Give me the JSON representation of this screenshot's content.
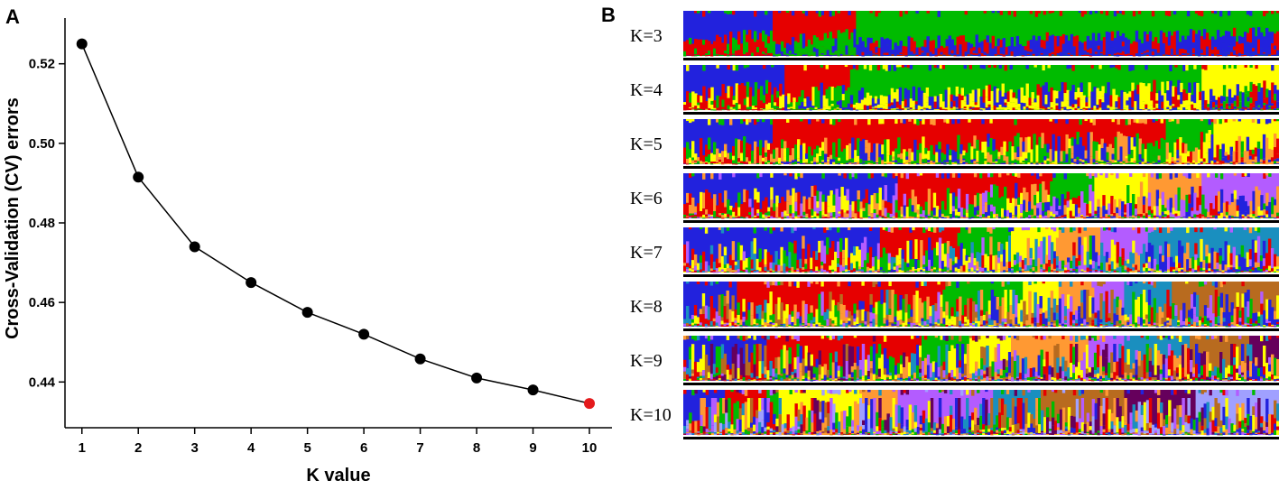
{
  "panels": {
    "a_label": "A",
    "b_label": "B"
  },
  "chart_data": [
    {
      "type": "line",
      "panel": "A",
      "title": "",
      "xlabel": "K value",
      "ylabel": "Cross-Validation (CV) errors",
      "x": [
        1,
        2,
        3,
        4,
        5,
        6,
        7,
        8,
        9,
        10
      ],
      "values": [
        0.525,
        0.4915,
        0.474,
        0.465,
        0.4575,
        0.452,
        0.4458,
        0.441,
        0.438,
        0.4346
      ],
      "xticks": [
        "1",
        "2",
        "3",
        "4",
        "5",
        "6",
        "7",
        "8",
        "9",
        "10"
      ],
      "yticks": [
        "0.44",
        "0.46",
        "0.48",
        "0.50",
        "0.52"
      ],
      "ytick_values": [
        0.44,
        0.46,
        0.48,
        0.5,
        0.52
      ],
      "xlim": [
        0.7,
        10.4
      ],
      "ylim": [
        0.4285,
        0.5315
      ],
      "grid": false,
      "point_color": "#000000",
      "highlight_index": 9,
      "highlight_color": "#e41a1c",
      "line_color": "#000000"
    },
    {
      "type": "bar",
      "subtype": "stacked-admixture",
      "panel": "B",
      "palette": [
        "#2222dd",
        "#e60000",
        "#00bb00",
        "#ffff00",
        "#ff9933",
        "#b35cff",
        "#1a8fbf",
        "#b86b1f",
        "#66005c",
        "#a0a0ff"
      ],
      "rows": [
        {
          "label": "K=3",
          "k": 3,
          "segments": [
            {
              "cluster": 0,
              "share": 0.15
            },
            {
              "cluster": 1,
              "share": 0.14
            },
            {
              "cluster": 2,
              "share": 0.71
            }
          ]
        },
        {
          "label": "K=4",
          "k": 4,
          "segments": [
            {
              "cluster": 0,
              "share": 0.17
            },
            {
              "cluster": 1,
              "share": 0.11
            },
            {
              "cluster": 2,
              "share": 0.59
            },
            {
              "cluster": 3,
              "share": 0.13
            }
          ]
        },
        {
          "label": "K=5",
          "k": 5,
          "segments": [
            {
              "cluster": 0,
              "share": 0.15
            },
            {
              "cluster": 1,
              "share": 0.66
            },
            {
              "cluster": 2,
              "share": 0.08
            },
            {
              "cluster": 3,
              "share": 0.11
            },
            {
              "cluster": 4,
              "share": 0.04
            }
          ]
        },
        {
          "label": "K=6",
          "k": 6,
          "segments": [
            {
              "cluster": 0,
              "share": 0.36
            },
            {
              "cluster": 1,
              "share": 0.26
            },
            {
              "cluster": 2,
              "share": 0.07
            },
            {
              "cluster": 3,
              "share": 0.09
            },
            {
              "cluster": 4,
              "share": 0.09
            },
            {
              "cluster": 5,
              "share": 0.13
            }
          ]
        },
        {
          "label": "K=7",
          "k": 7,
          "segments": [
            {
              "cluster": 0,
              "share": 0.33
            },
            {
              "cluster": 1,
              "share": 0.13
            },
            {
              "cluster": 2,
              "share": 0.09
            },
            {
              "cluster": 3,
              "share": 0.08
            },
            {
              "cluster": 4,
              "share": 0.07
            },
            {
              "cluster": 5,
              "share": 0.08
            },
            {
              "cluster": 6,
              "share": 0.22
            }
          ]
        },
        {
          "label": "K=8",
          "k": 8,
          "segments": [
            {
              "cluster": 0,
              "share": 0.09
            },
            {
              "cluster": 1,
              "share": 0.35
            },
            {
              "cluster": 2,
              "share": 0.13
            },
            {
              "cluster": 3,
              "share": 0.06
            },
            {
              "cluster": 4,
              "share": 0.06
            },
            {
              "cluster": 5,
              "share": 0.05
            },
            {
              "cluster": 6,
              "share": 0.08
            },
            {
              "cluster": 7,
              "share": 0.18
            }
          ]
        },
        {
          "label": "K=9",
          "k": 9,
          "segments": [
            {
              "cluster": 0,
              "share": 0.14
            },
            {
              "cluster": 1,
              "share": 0.26
            },
            {
              "cluster": 2,
              "share": 0.08
            },
            {
              "cluster": 3,
              "share": 0.07
            },
            {
              "cluster": 4,
              "share": 0.13
            },
            {
              "cluster": 5,
              "share": 0.06
            },
            {
              "cluster": 6,
              "share": 0.11
            },
            {
              "cluster": 7,
              "share": 0.1
            },
            {
              "cluster": 8,
              "share": 0.05
            }
          ]
        },
        {
          "label": "K=10",
          "k": 10,
          "segments": [
            {
              "cluster": 0,
              "share": 0.07
            },
            {
              "cluster": 1,
              "share": 0.07
            },
            {
              "cluster": 2,
              "share": 0.02
            },
            {
              "cluster": 3,
              "share": 0.14
            },
            {
              "cluster": 4,
              "share": 0.06
            },
            {
              "cluster": 5,
              "share": 0.16
            },
            {
              "cluster": 6,
              "share": 0.08
            },
            {
              "cluster": 7,
              "share": 0.14
            },
            {
              "cluster": 8,
              "share": 0.12
            },
            {
              "cluster": 9,
              "share": 0.14
            }
          ]
        }
      ]
    }
  ]
}
